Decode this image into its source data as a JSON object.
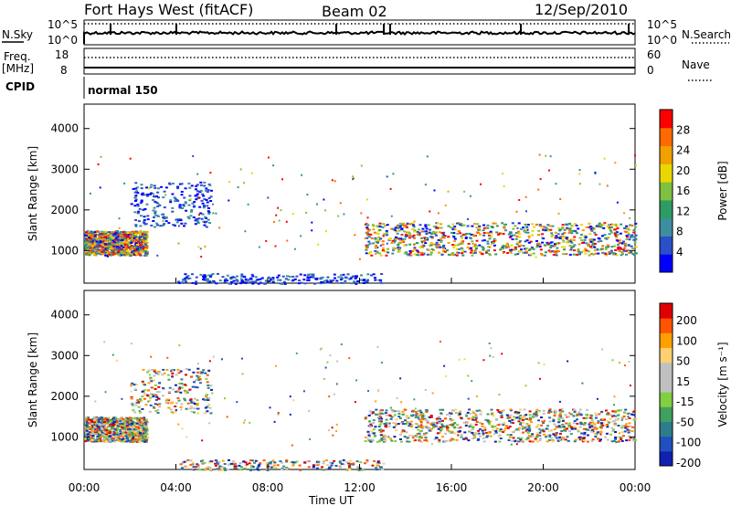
{
  "header": {
    "station": "Fort Hays West (fitACF)",
    "beam": "Beam 02",
    "date": "12/Sep/2010"
  },
  "status_panel": {
    "nsky_label": "N.Sky",
    "nsky_ticks": [
      "10^5",
      "10^0"
    ],
    "nsearch_label": "N.Search",
    "nsearch_ticks": [
      "10^5",
      "10^0"
    ],
    "freq_label": "Freq.",
    "freq_unit": "[MHz]",
    "freq_ticks": [
      "18",
      "8"
    ],
    "nave_label": "Nave",
    "nave_ticks": [
      "60",
      "0"
    ],
    "cpid_label": "CPID",
    "cpid_value": "normal 150"
  },
  "chart_data": [
    {
      "type": "heatmap",
      "name": "power",
      "ylabel": "Slant Range [km]",
      "yticks": [
        "1000",
        "2000",
        "3000",
        "4000"
      ],
      "ylim": [
        200,
        4600
      ],
      "xlim": [
        0,
        24
      ],
      "colorbar": {
        "label": "Power [dB]",
        "ticks": [
          "4",
          "8",
          "12",
          "16",
          "20",
          "24",
          "28"
        ],
        "range": [
          0,
          32
        ],
        "colors": [
          "#0000ff",
          "#2a4fc8",
          "#3d8fa0",
          "#2e9b64",
          "#80c040",
          "#e8d800",
          "#f0a000",
          "#ff6a00",
          "#ff0000"
        ]
      },
      "regions": [
        {
          "t": [
            0.0,
            2.7
          ],
          "r": [
            900,
            1500
          ],
          "level": "strong"
        },
        {
          "t": [
            2.0,
            5.5
          ],
          "r": [
            1600,
            2700
          ],
          "level": "weak"
        },
        {
          "t": [
            12.2,
            24.0
          ],
          "r": [
            900,
            1700
          ],
          "level": "strong"
        },
        {
          "t": [
            4.0,
            13.0
          ],
          "r": [
            200,
            450
          ],
          "level": "weak"
        }
      ]
    },
    {
      "type": "heatmap",
      "name": "velocity",
      "ylabel": "Slant Range [km]",
      "yticks": [
        "1000",
        "2000",
        "3000",
        "4000"
      ],
      "ylim": [
        200,
        4600
      ],
      "xlim": [
        0,
        24
      ],
      "xticks": [
        "00:00",
        "04:00",
        "08:00",
        "12:00",
        "16:00",
        "20:00",
        "00:00"
      ],
      "xlabel": "Time UT",
      "colorbar": {
        "label": "Velocity [m s⁻¹]",
        "ticks": [
          "200",
          "100",
          "50",
          "15",
          "-15",
          "-50",
          "-100",
          "-200"
        ],
        "range": [
          -250,
          250
        ],
        "colors": [
          "#e00000",
          "#ff5500",
          "#ffa000",
          "#ffd070",
          "#c0c0c0",
          "#c0c0c0",
          "#80d040",
          "#40a060",
          "#2e7d8c",
          "#2050c0",
          "#1020b0"
        ]
      },
      "regions": [
        {
          "t": [
            0.0,
            2.7
          ],
          "r": [
            900,
            1500
          ],
          "level": "strong"
        },
        {
          "t": [
            2.0,
            5.5
          ],
          "r": [
            1600,
            2700
          ],
          "level": "weak"
        },
        {
          "t": [
            12.2,
            24.0
          ],
          "r": [
            900,
            1700
          ],
          "level": "strong"
        },
        {
          "t": [
            4.0,
            13.0
          ],
          "r": [
            200,
            450
          ],
          "level": "weak"
        }
      ]
    }
  ]
}
